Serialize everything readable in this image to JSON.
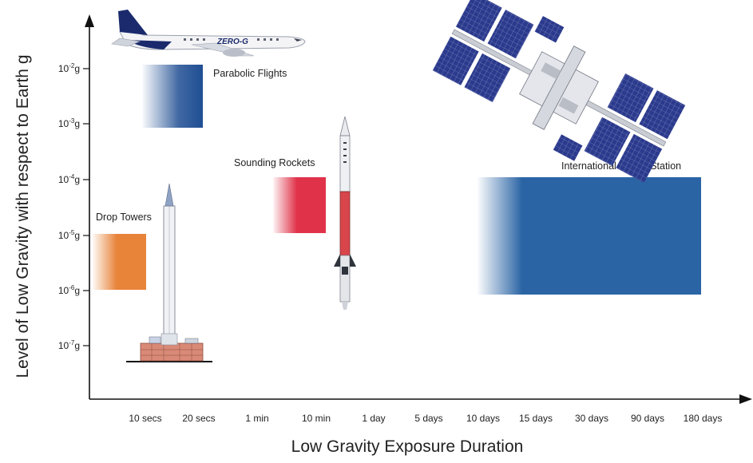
{
  "axes": {
    "ylabel": "Level of Low Gravity with respect to Earth g",
    "xlabel": "Low Gravity Exposure Duration",
    "y_ticks": [
      {
        "base": "10",
        "exp": "-2",
        "unit": "g"
      },
      {
        "base": "10",
        "exp": "-3",
        "unit": "g"
      },
      {
        "base": "10",
        "exp": "-4",
        "unit": "g"
      },
      {
        "base": "10",
        "exp": "-5",
        "unit": "g"
      },
      {
        "base": "10",
        "exp": "-6",
        "unit": "g"
      },
      {
        "base": "10",
        "exp": "-7",
        "unit": "g"
      }
    ],
    "x_ticks": [
      "10 secs",
      "20 secs",
      "1 min",
      "10 min",
      "1 day",
      "5 days",
      "10 days",
      "15 days",
      "30 days",
      "90 days",
      "180 days"
    ]
  },
  "platforms": [
    {
      "id": "drop-towers",
      "label": "Drop Towers",
      "duration": [
        "",
        "10 secs"
      ],
      "gravity_g": [
        "1e-6",
        "1e-5"
      ],
      "color": "#e8833a"
    },
    {
      "id": "parabolic-flights",
      "label": "Parabolic Flights",
      "duration": [
        "10 secs",
        "20 secs"
      ],
      "gravity_g": [
        "1e-3",
        "1e-2"
      ],
      "color": "#1f4e93"
    },
    {
      "id": "sounding-rockets",
      "label": "Sounding Rockets",
      "duration": [
        "1 min",
        "10 min"
      ],
      "gravity_g": [
        "1e-5",
        "1e-4"
      ],
      "color": "#e0334a"
    },
    {
      "id": "international-space-station",
      "label": "International Space Station",
      "duration": [
        "10 days",
        "180 days"
      ],
      "gravity_g": [
        "1e-6",
        "1e-4"
      ],
      "color": "#2a64a5"
    }
  ],
  "images": {
    "aircraft_livery": "ZERO-G",
    "aircraft_icon": "aircraft-icon",
    "tower_icon": "drop-tower-icon",
    "rocket_icon": "rocket-icon",
    "station_icon": "space-station-icon"
  }
}
